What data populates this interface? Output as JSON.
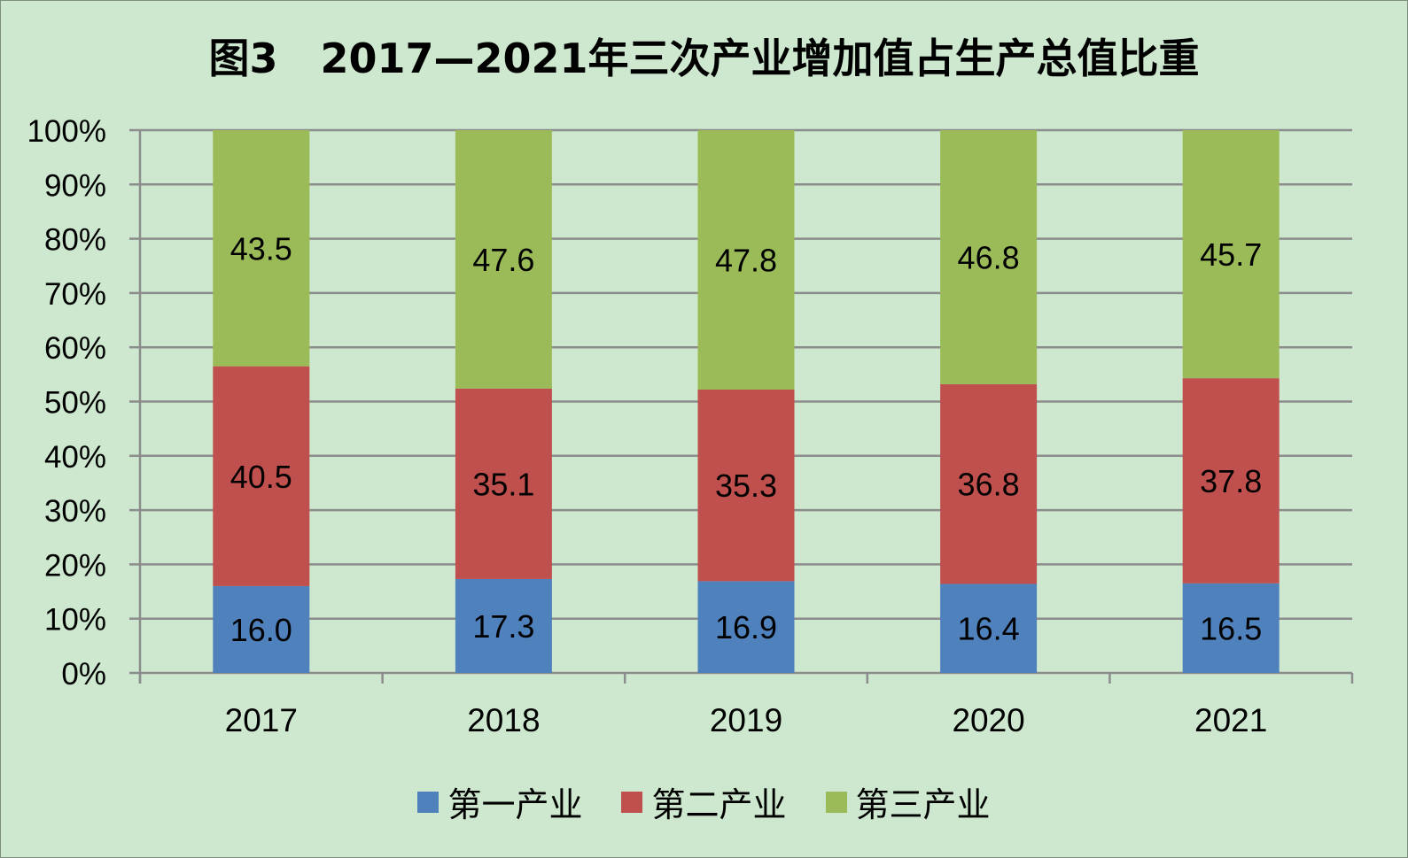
{
  "title": "图3   2017—2021年三次产业增加值占生产总值比重",
  "colors": {
    "background": "#cde8cf",
    "grid": "#8c8c8c",
    "series1": "#4f81bd",
    "series2": "#c0504d",
    "series3": "#9bbb59"
  },
  "chart_data": {
    "type": "bar",
    "stacked": true,
    "percent_stacked": true,
    "categories": [
      "2017",
      "2018",
      "2019",
      "2020",
      "2021"
    ],
    "series": [
      {
        "name": "第一产业",
        "values": [
          16.0,
          17.3,
          16.9,
          16.4,
          16.5
        ],
        "labels": [
          "16.0",
          "17.3",
          "16.9",
          "16.4",
          "16.5"
        ]
      },
      {
        "name": "第二产业",
        "values": [
          40.5,
          35.1,
          35.3,
          36.8,
          37.8
        ],
        "labels": [
          "40.5",
          "35.1",
          "35.3",
          "36.8",
          "37.8"
        ]
      },
      {
        "name": "第三产业",
        "values": [
          43.5,
          47.6,
          47.8,
          46.8,
          45.7
        ],
        "labels": [
          "43.5",
          "47.6",
          "47.8",
          "46.8",
          "45.7"
        ]
      }
    ],
    "yticks": [
      "0%",
      "10%",
      "20%",
      "30%",
      "40%",
      "50%",
      "60%",
      "70%",
      "80%",
      "90%",
      "100%"
    ],
    "ylim": [
      0,
      100
    ],
    "grid": true,
    "legend_position": "bottom"
  }
}
